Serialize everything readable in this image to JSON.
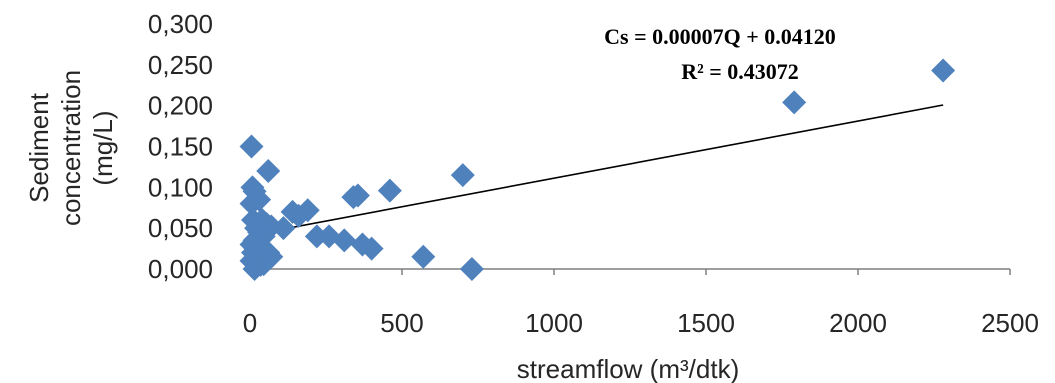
{
  "chart_data": {
    "type": "scatter",
    "xlabel": "streamflow (m³/dtk)",
    "ylabel_lines": [
      "Sediment",
      "concentration",
      "(mg/L)"
    ],
    "xlim": [
      0,
      2500
    ],
    "ylim": [
      0,
      0.3
    ],
    "x_ticks": [
      0,
      500,
      1000,
      1500,
      2000,
      2500
    ],
    "x_tick_labels": [
      "0",
      "500",
      "1000",
      "1500",
      "2000",
      "2500"
    ],
    "y_ticks": [
      0,
      0.05,
      0.1,
      0.15,
      0.2,
      0.25,
      0.3
    ],
    "y_tick_labels": [
      "0,000",
      "0,050",
      "0,100",
      "0,150",
      "0,200",
      "0,250",
      "0,300"
    ],
    "grid": false,
    "marker": "diamond",
    "marker_color": "#4F81BD",
    "series": [
      {
        "points": [
          [
            5,
            0.15
          ],
          [
            8,
            0.1
          ],
          [
            15,
            0.095
          ],
          [
            30,
            0.085
          ],
          [
            5,
            0.08
          ],
          [
            60,
            0.12
          ],
          [
            40,
            0.06
          ],
          [
            55,
            0.055
          ],
          [
            70,
            0.052
          ],
          [
            10,
            0.06
          ],
          [
            20,
            0.05
          ],
          [
            30,
            0.045
          ],
          [
            45,
            0.04
          ],
          [
            15,
            0.035
          ],
          [
            25,
            0.03
          ],
          [
            5,
            0.03
          ],
          [
            40,
            0.025
          ],
          [
            60,
            0.02
          ],
          [
            10,
            0.02
          ],
          [
            30,
            0.015
          ],
          [
            70,
            0.015
          ],
          [
            5,
            0.01
          ],
          [
            20,
            0.008
          ],
          [
            45,
            0.006
          ],
          [
            15,
            0.0
          ],
          [
            35,
            0.005
          ],
          [
            110,
            0.05
          ],
          [
            140,
            0.07
          ],
          [
            160,
            0.065
          ],
          [
            190,
            0.072
          ],
          [
            220,
            0.04
          ],
          [
            260,
            0.04
          ],
          [
            310,
            0.035
          ],
          [
            340,
            0.088
          ],
          [
            355,
            0.09
          ],
          [
            370,
            0.03
          ],
          [
            400,
            0.025
          ],
          [
            460,
            0.096
          ],
          [
            570,
            0.015
          ],
          [
            700,
            0.115
          ],
          [
            730,
            0.0
          ],
          [
            1790,
            0.204
          ],
          [
            2280,
            0.243
          ]
        ]
      }
    ],
    "trendline": {
      "slope": 7e-05,
      "intercept": 0.0412,
      "x_range": [
        0,
        2280
      ],
      "color": "#000000"
    },
    "annotations": [
      "Cs = 0.00007Q + 0.04120",
      "R² = 0.43072"
    ]
  }
}
